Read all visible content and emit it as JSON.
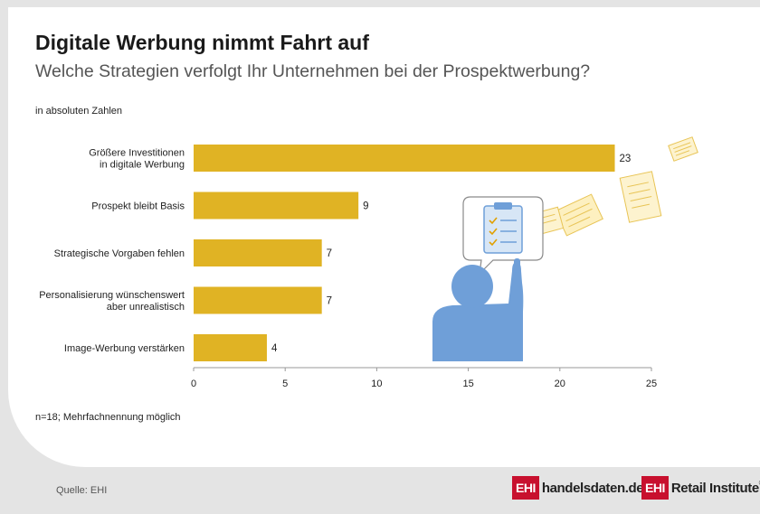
{
  "header": {
    "title": "Digitale Werbung nimmt Fahrt auf",
    "subtitle": "Welche Strategien verfolgt Ihr Unternehmen bei der Prospektwerbung?"
  },
  "unit_note": "in absoluten Zahlen",
  "footnote": "n=18; Mehrfachnennung möglich",
  "source": "Quelle: EHI",
  "logos": {
    "logo1_box": "EHI",
    "logo1_text": "handelsdaten.de",
    "logo2_box": "EHI",
    "logo2_text": "Retail Institute",
    "logo2_reg": "®"
  },
  "colors": {
    "bar": "#e0b324",
    "background": "#e4e4e4",
    "figure": "#6f9fd8"
  },
  "icons": [
    "person-pointing-icon",
    "speech-bubble-icon",
    "clipboard-checklist-icon",
    "flying-flyer-icon"
  ],
  "chart_data": {
    "type": "bar",
    "orientation": "horizontal",
    "categories": [
      [
        "Größere Investitionen",
        "in digitale Werbung"
      ],
      [
        "Prospekt bleibt Basis"
      ],
      [
        "Strategische Vorgaben fehlen"
      ],
      [
        "Personalisierung wünschenswert",
        "aber unrealistisch"
      ],
      [
        "Image-Werbung verstärken"
      ]
    ],
    "values": [
      23,
      9,
      7,
      7,
      4
    ],
    "xlim": [
      0,
      25
    ],
    "xticks": [
      0,
      5,
      10,
      15,
      20,
      25
    ],
    "grid": false
  }
}
